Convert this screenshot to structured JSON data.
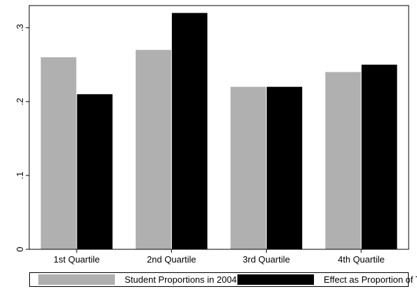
{
  "chart_data": {
    "type": "bar",
    "title": "",
    "xlabel": "",
    "ylabel": "",
    "categories": [
      "1st Quartile",
      "2nd Quartile",
      "3rd Quartile",
      "4th Quartile"
    ],
    "series": [
      {
        "name": "Student Proportions in 2004",
        "color": "#b0b0b0",
        "values": [
          0.26,
          0.27,
          0.22,
          0.24
        ]
      },
      {
        "name": "Effect as Proportion of Total",
        "color": "#000000",
        "values": [
          0.21,
          0.32,
          0.22,
          0.25
        ]
      }
    ],
    "ylim": [
      0,
      0.33
    ],
    "yticks": [
      {
        "value": 0,
        "label": "0"
      },
      {
        "value": 0.1,
        "label": ".1"
      },
      {
        "value": 0.2,
        "label": ".2"
      },
      {
        "value": 0.3,
        "label": ".3"
      }
    ],
    "grid": false,
    "legend_position": "bottom"
  }
}
